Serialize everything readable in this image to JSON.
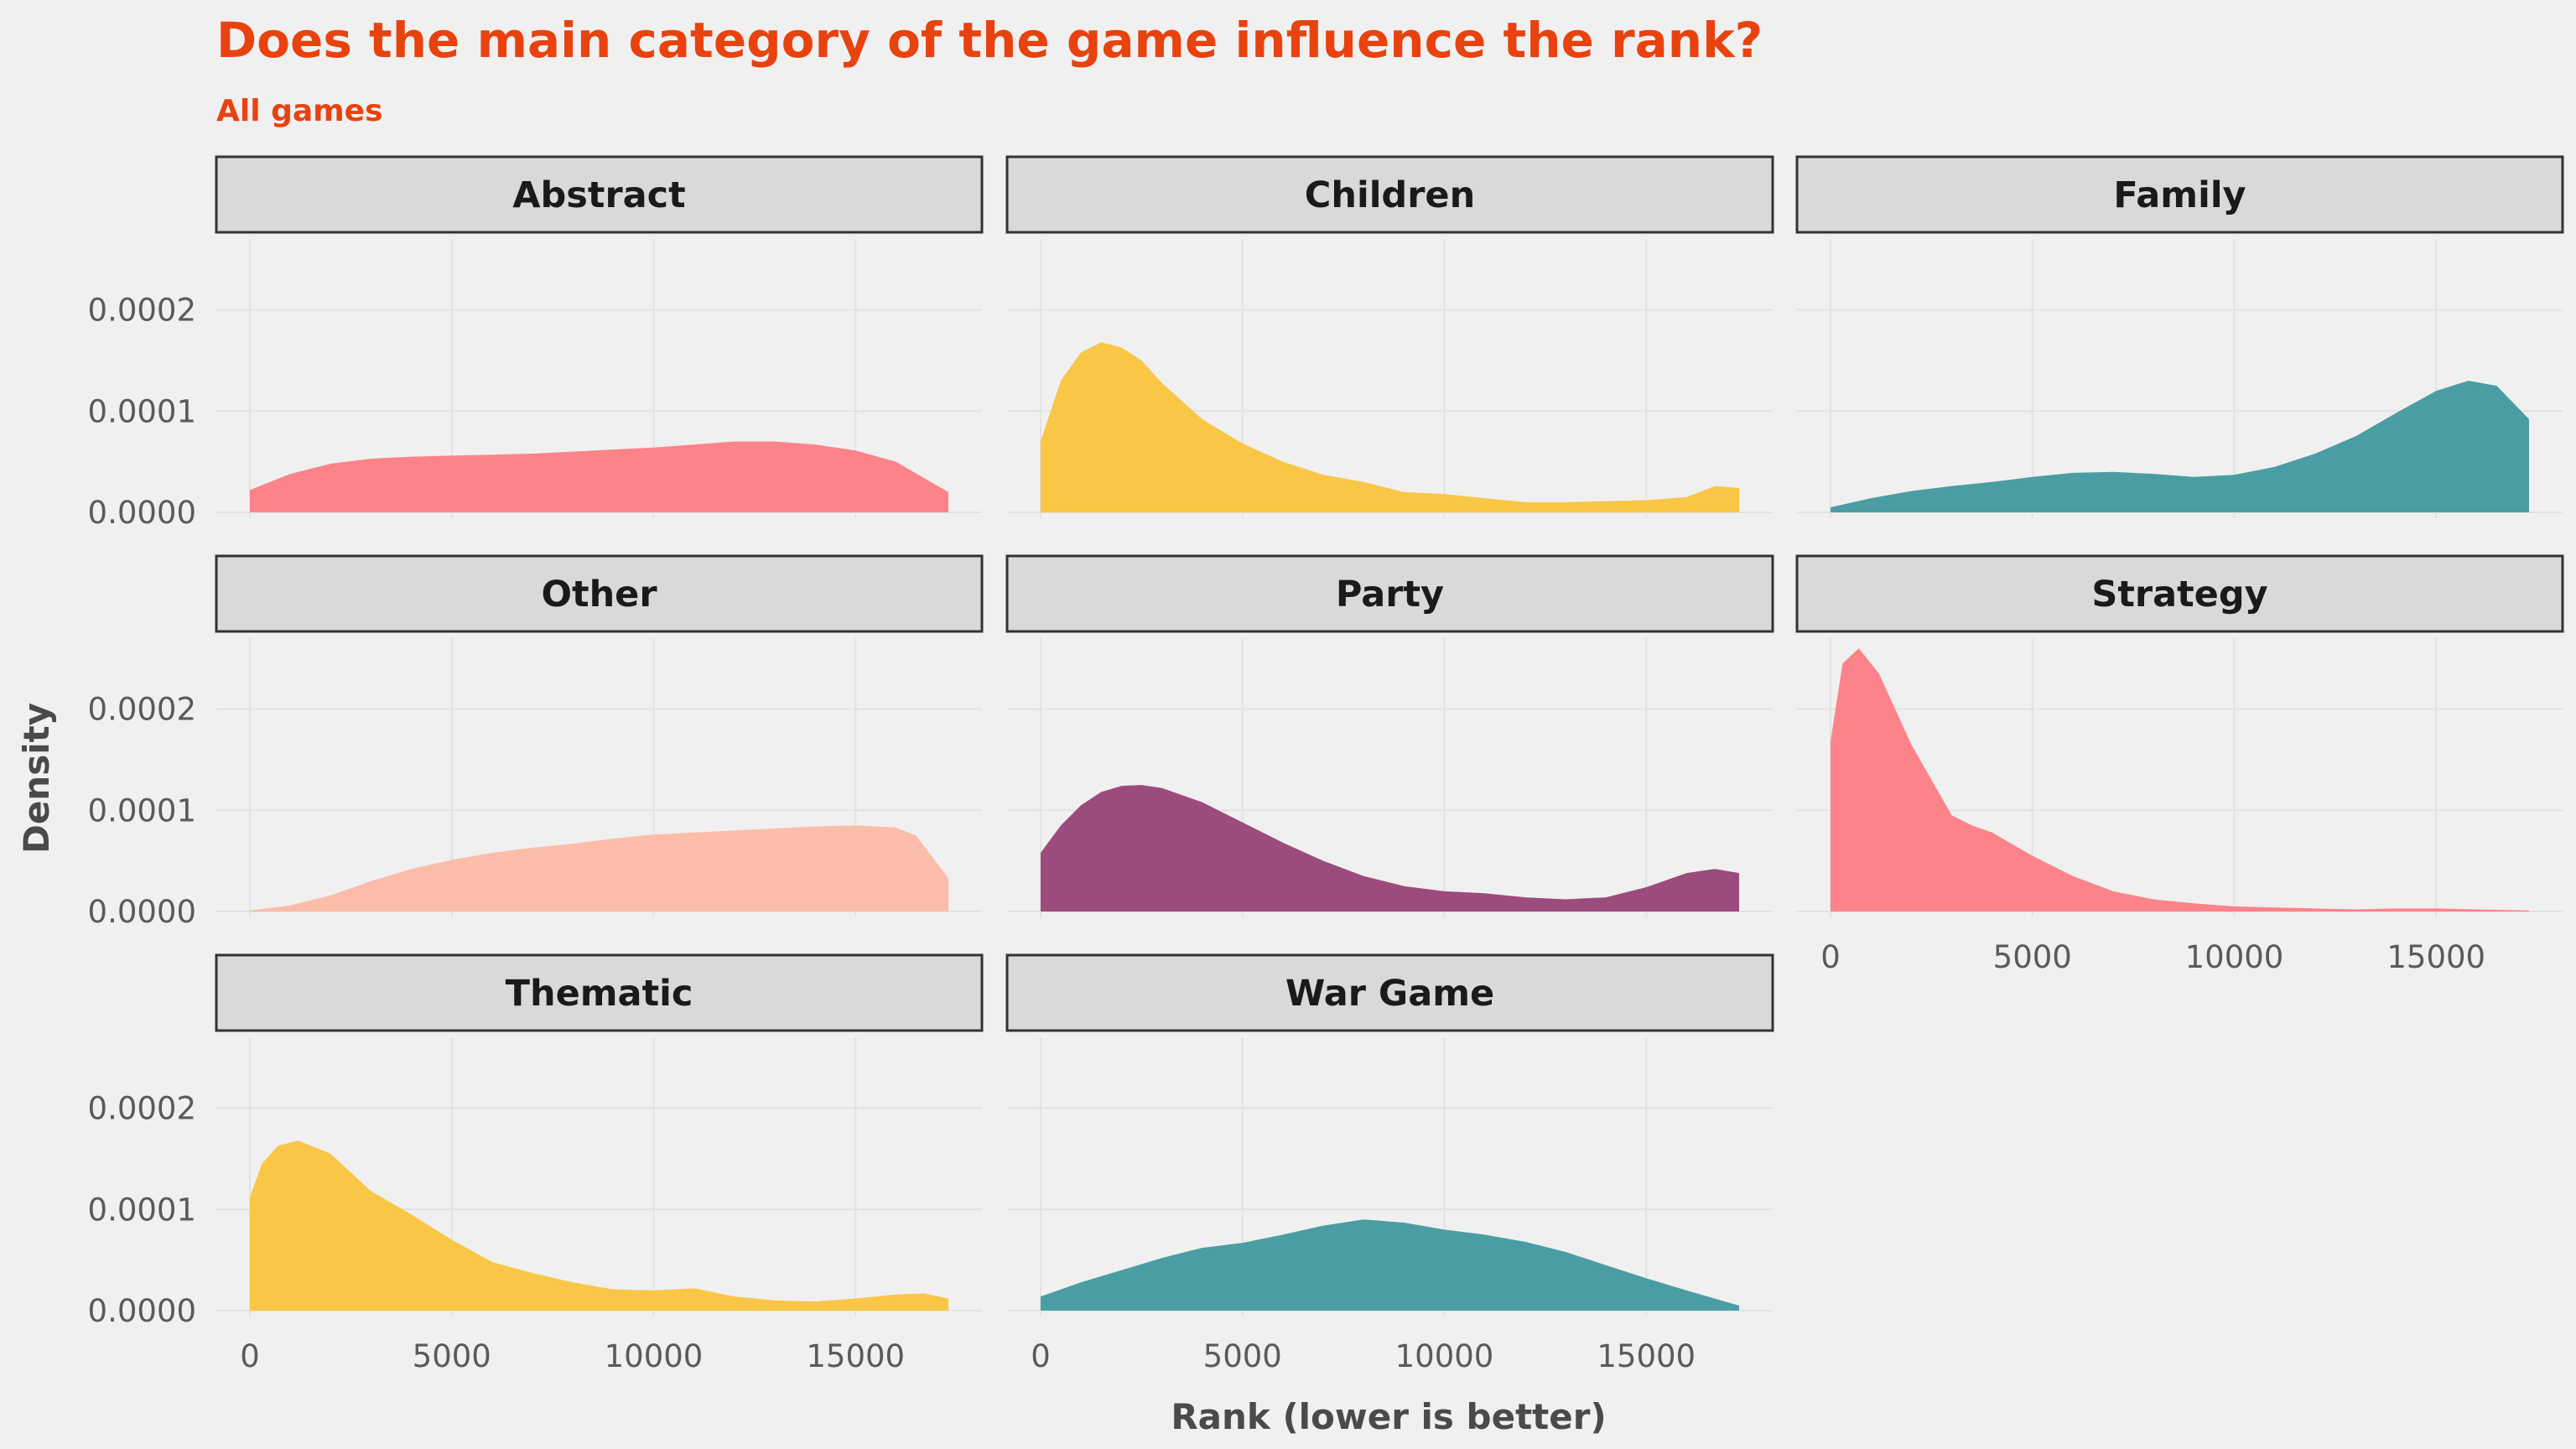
{
  "chart_data": {
    "type": "area",
    "title": "Does the main category of the game influence the rank?",
    "subtitle": "All games",
    "xlabel": "Rank (lower is better)",
    "ylabel": "Density",
    "xlim": [
      0,
      17300
    ],
    "ylim": [
      0,
      0.00027
    ],
    "x_ticks": [
      0,
      5000,
      10000,
      15000
    ],
    "x_tick_labels": [
      "0",
      "5000",
      "10000",
      "15000"
    ],
    "y_ticks": [
      0,
      0.0001,
      0.0002
    ],
    "y_tick_labels": [
      "0.0000",
      "0.0001",
      "0.0002"
    ],
    "grid": true,
    "layout": {
      "columns": 3,
      "rows": 3
    },
    "title_color": "#e8420f",
    "panels": [
      {
        "name": "Abstract",
        "color": "#fc8389",
        "x": [
          0,
          1000,
          2000,
          3000,
          4000,
          5000,
          6000,
          7000,
          8000,
          9000,
          10000,
          11000,
          12000,
          13000,
          14000,
          15000,
          16000,
          17300
        ],
        "y": [
          2.2e-05,
          3.8e-05,
          4.8e-05,
          5.3e-05,
          5.5e-05,
          5.6e-05,
          5.7e-05,
          5.8e-05,
          6e-05,
          6.2e-05,
          6.4e-05,
          6.7e-05,
          7e-05,
          7e-05,
          6.7e-05,
          6.1e-05,
          5e-05,
          2e-05
        ]
      },
      {
        "name": "Children",
        "color": "#f9c646",
        "x": [
          0,
          500,
          1000,
          1500,
          2000,
          2500,
          3000,
          4000,
          5000,
          6000,
          7000,
          8000,
          9000,
          10000,
          11000,
          12000,
          13000,
          14000,
          15000,
          16000,
          16700,
          17300
        ],
        "y": [
          7e-05,
          0.00013,
          0.000158,
          0.000168,
          0.000163,
          0.00015,
          0.000128,
          9.2e-05,
          6.8e-05,
          5e-05,
          3.7e-05,
          3e-05,
          2e-05,
          1.8e-05,
          1.4e-05,
          1e-05,
          1e-05,
          1.1e-05,
          1.2e-05,
          1.5e-05,
          2.6e-05,
          2.4e-05
        ]
      },
      {
        "name": "Family",
        "color": "#4a9ea3",
        "x": [
          0,
          1000,
          2000,
          3000,
          4000,
          5000,
          6000,
          7000,
          8000,
          9000,
          10000,
          11000,
          12000,
          13000,
          14000,
          15000,
          15800,
          16500,
          17300
        ],
        "y": [
          5e-06,
          1.4e-05,
          2.1e-05,
          2.6e-05,
          3e-05,
          3.5e-05,
          3.9e-05,
          4e-05,
          3.8e-05,
          3.5e-05,
          3.7e-05,
          4.5e-05,
          5.8e-05,
          7.5e-05,
          9.8e-05,
          0.00012,
          0.00013,
          0.000125,
          9.2e-05
        ]
      },
      {
        "name": "Other",
        "color": "#fbbdaa",
        "x": [
          0,
          1000,
          2000,
          3000,
          4000,
          5000,
          6000,
          7000,
          8000,
          9000,
          10000,
          11000,
          12000,
          13000,
          14000,
          15000,
          16000,
          16500,
          17300
        ],
        "y": [
          1e-06,
          6e-06,
          1.6e-05,
          3e-05,
          4.2e-05,
          5.1e-05,
          5.8e-05,
          6.3e-05,
          6.7e-05,
          7.2e-05,
          7.6e-05,
          7.8e-05,
          8e-05,
          8.2e-05,
          8.4e-05,
          8.5e-05,
          8.3e-05,
          7.5e-05,
          3.3e-05
        ]
      },
      {
        "name": "Party",
        "color": "#9c4b7d",
        "x": [
          0,
          500,
          1000,
          1500,
          2000,
          2500,
          3000,
          4000,
          5000,
          6000,
          7000,
          8000,
          9000,
          10000,
          11000,
          12000,
          13000,
          14000,
          15000,
          16000,
          16700,
          17300
        ],
        "y": [
          5.8e-05,
          8.5e-05,
          0.000105,
          0.000118,
          0.000124,
          0.000125,
          0.000122,
          0.000108,
          8.8e-05,
          6.8e-05,
          5e-05,
          3.5e-05,
          2.5e-05,
          2e-05,
          1.8e-05,
          1.4e-05,
          1.2e-05,
          1.4e-05,
          2.4e-05,
          3.8e-05,
          4.2e-05,
          3.8e-05
        ]
      },
      {
        "name": "Strategy",
        "color": "#fc8389",
        "x": [
          0,
          300,
          700,
          1200,
          2000,
          3000,
          3500,
          4000,
          5000,
          6000,
          7000,
          8000,
          9000,
          10000,
          11000,
          12000,
          13000,
          14000,
          15000,
          16000,
          17300
        ],
        "y": [
          0.000168,
          0.000245,
          0.00026,
          0.000235,
          0.000165,
          9.5e-05,
          8.5e-05,
          7.8e-05,
          5.5e-05,
          3.5e-05,
          2e-05,
          1.2e-05,
          8e-06,
          5e-06,
          4e-06,
          3e-06,
          2e-06,
          3e-06,
          3e-06,
          2e-06,
          1e-06
        ]
      },
      {
        "name": "Thematic",
        "color": "#f9c646",
        "x": [
          0,
          300,
          700,
          1200,
          2000,
          3000,
          4000,
          5000,
          6000,
          7000,
          8000,
          9000,
          10000,
          11000,
          12000,
          13000,
          14000,
          15000,
          16000,
          16700,
          17300
        ],
        "y": [
          0.000112,
          0.000145,
          0.000163,
          0.000168,
          0.000155,
          0.000118,
          9.5e-05,
          7e-05,
          4.8e-05,
          3.7e-05,
          2.8e-05,
          2.1e-05,
          2e-05,
          2.2e-05,
          1.4e-05,
          1e-05,
          9e-06,
          1.2e-05,
          1.6e-05,
          1.7e-05,
          1.2e-05
        ]
      },
      {
        "name": "War Game",
        "color": "#4a9ea3",
        "x": [
          0,
          1000,
          2000,
          3000,
          4000,
          5000,
          6000,
          7000,
          8000,
          9000,
          10000,
          11000,
          12000,
          13000,
          14000,
          15000,
          16000,
          17300
        ],
        "y": [
          1.4e-05,
          2.8e-05,
          4e-05,
          5.2e-05,
          6.2e-05,
          6.7e-05,
          7.5e-05,
          8.4e-05,
          9e-05,
          8.7e-05,
          8e-05,
          7.5e-05,
          6.8e-05,
          5.8e-05,
          4.5e-05,
          3.2e-05,
          2e-05,
          5e-06
        ]
      }
    ]
  }
}
